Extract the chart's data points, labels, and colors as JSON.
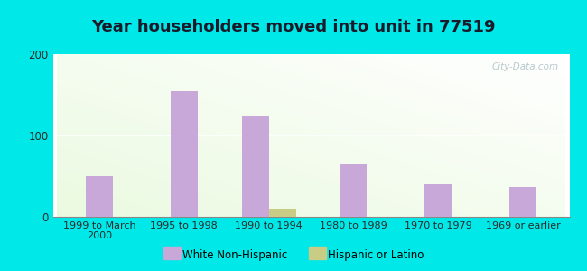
{
  "title": "Year householders moved into unit in 77519",
  "categories": [
    "1999 to March\n2000",
    "1995 to 1998",
    "1990 to 1994",
    "1980 to 1989",
    "1970 to 1979",
    "1969 or earlier"
  ],
  "white_values": [
    50,
    155,
    125,
    65,
    40,
    37
  ],
  "hispanic_values": [
    0,
    0,
    10,
    0,
    0,
    0
  ],
  "white_color": "#c8a8d8",
  "hispanic_color": "#c8cc84",
  "ylim": [
    0,
    200
  ],
  "yticks": [
    0,
    100,
    200
  ],
  "background_color": "#00e8e8",
  "title_fontsize": 13,
  "bar_width": 0.32,
  "watermark": "City-Data.com"
}
